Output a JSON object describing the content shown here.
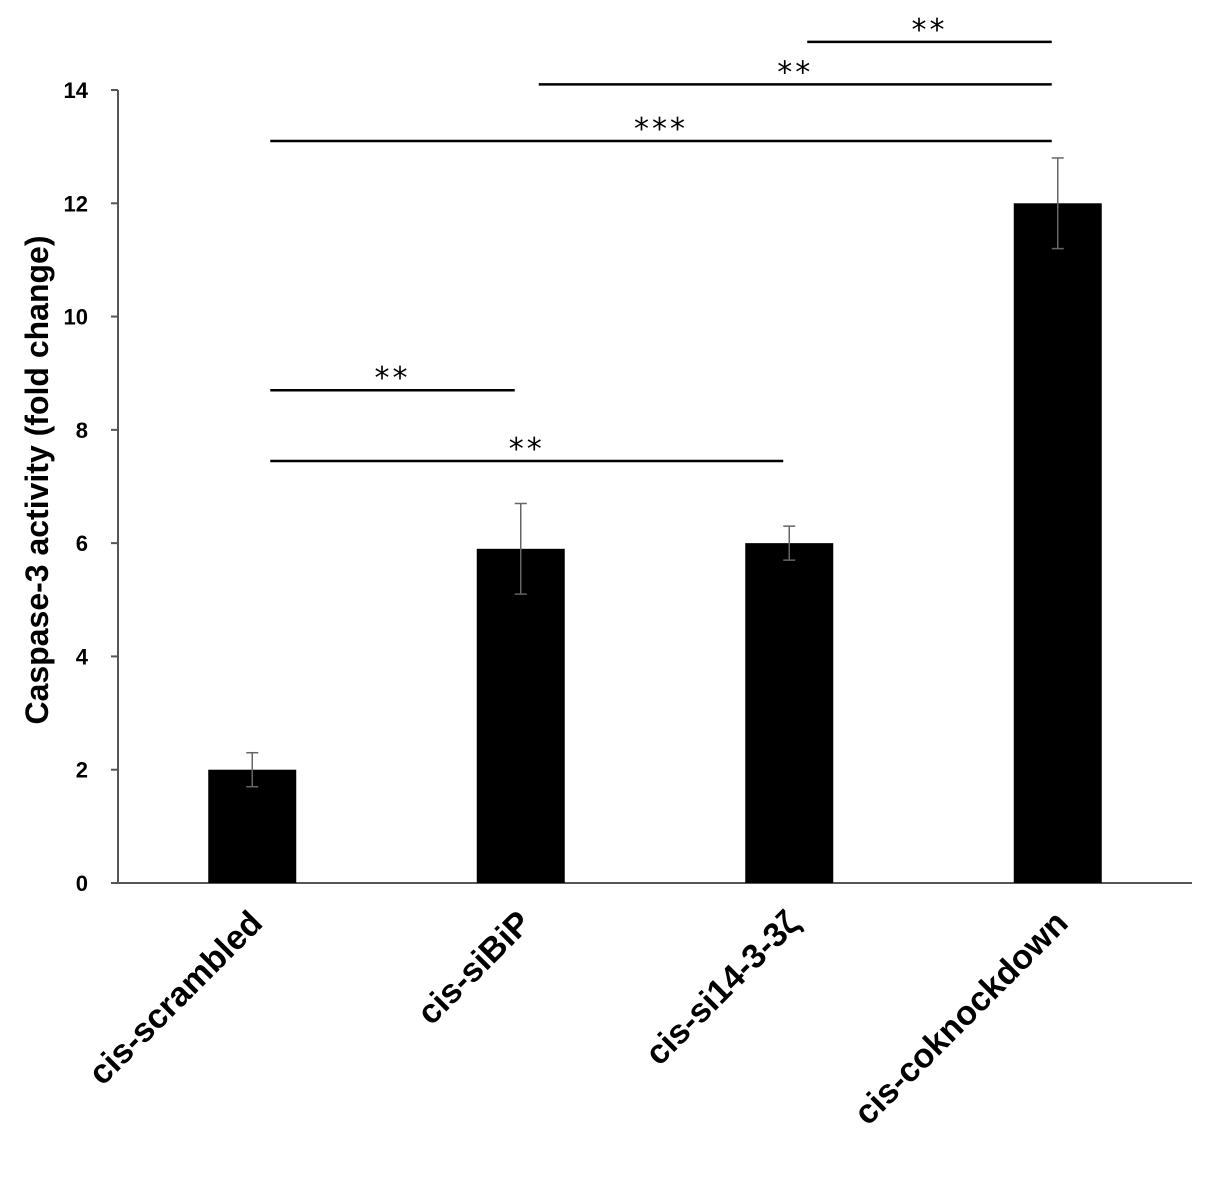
{
  "chart_data": {
    "type": "bar",
    "title": "",
    "xlabel": "",
    "ylabel": "Caspase-3  activity (fold change)",
    "ylim": [
      0,
      14
    ],
    "yticks": [
      0,
      2,
      4,
      6,
      8,
      10,
      12,
      14
    ],
    "grid": false,
    "legend": "none",
    "categories": [
      "cis-scrambled",
      "cis-siBiP",
      "cis-si14-3-3ζ",
      "cis-coknockdown"
    ],
    "series": [
      {
        "values": [
          2.0,
          5.9,
          6.0,
          12.0
        ],
        "errors": [
          0.3,
          0.8,
          0.3,
          0.8
        ],
        "color": "#000000"
      }
    ],
    "significance": [
      {
        "from": 0,
        "to": 1,
        "y": 8.7,
        "label": "**"
      },
      {
        "from": 0,
        "to": 2,
        "y": 7.45,
        "label": "**"
      },
      {
        "from": 0,
        "to": 3,
        "y": 13.1,
        "label": "***"
      },
      {
        "from": 1,
        "to": 3,
        "y": 14.1,
        "label": "**"
      },
      {
        "from": 2,
        "to": 3,
        "y": 14.85,
        "label": "**"
      }
    ]
  }
}
